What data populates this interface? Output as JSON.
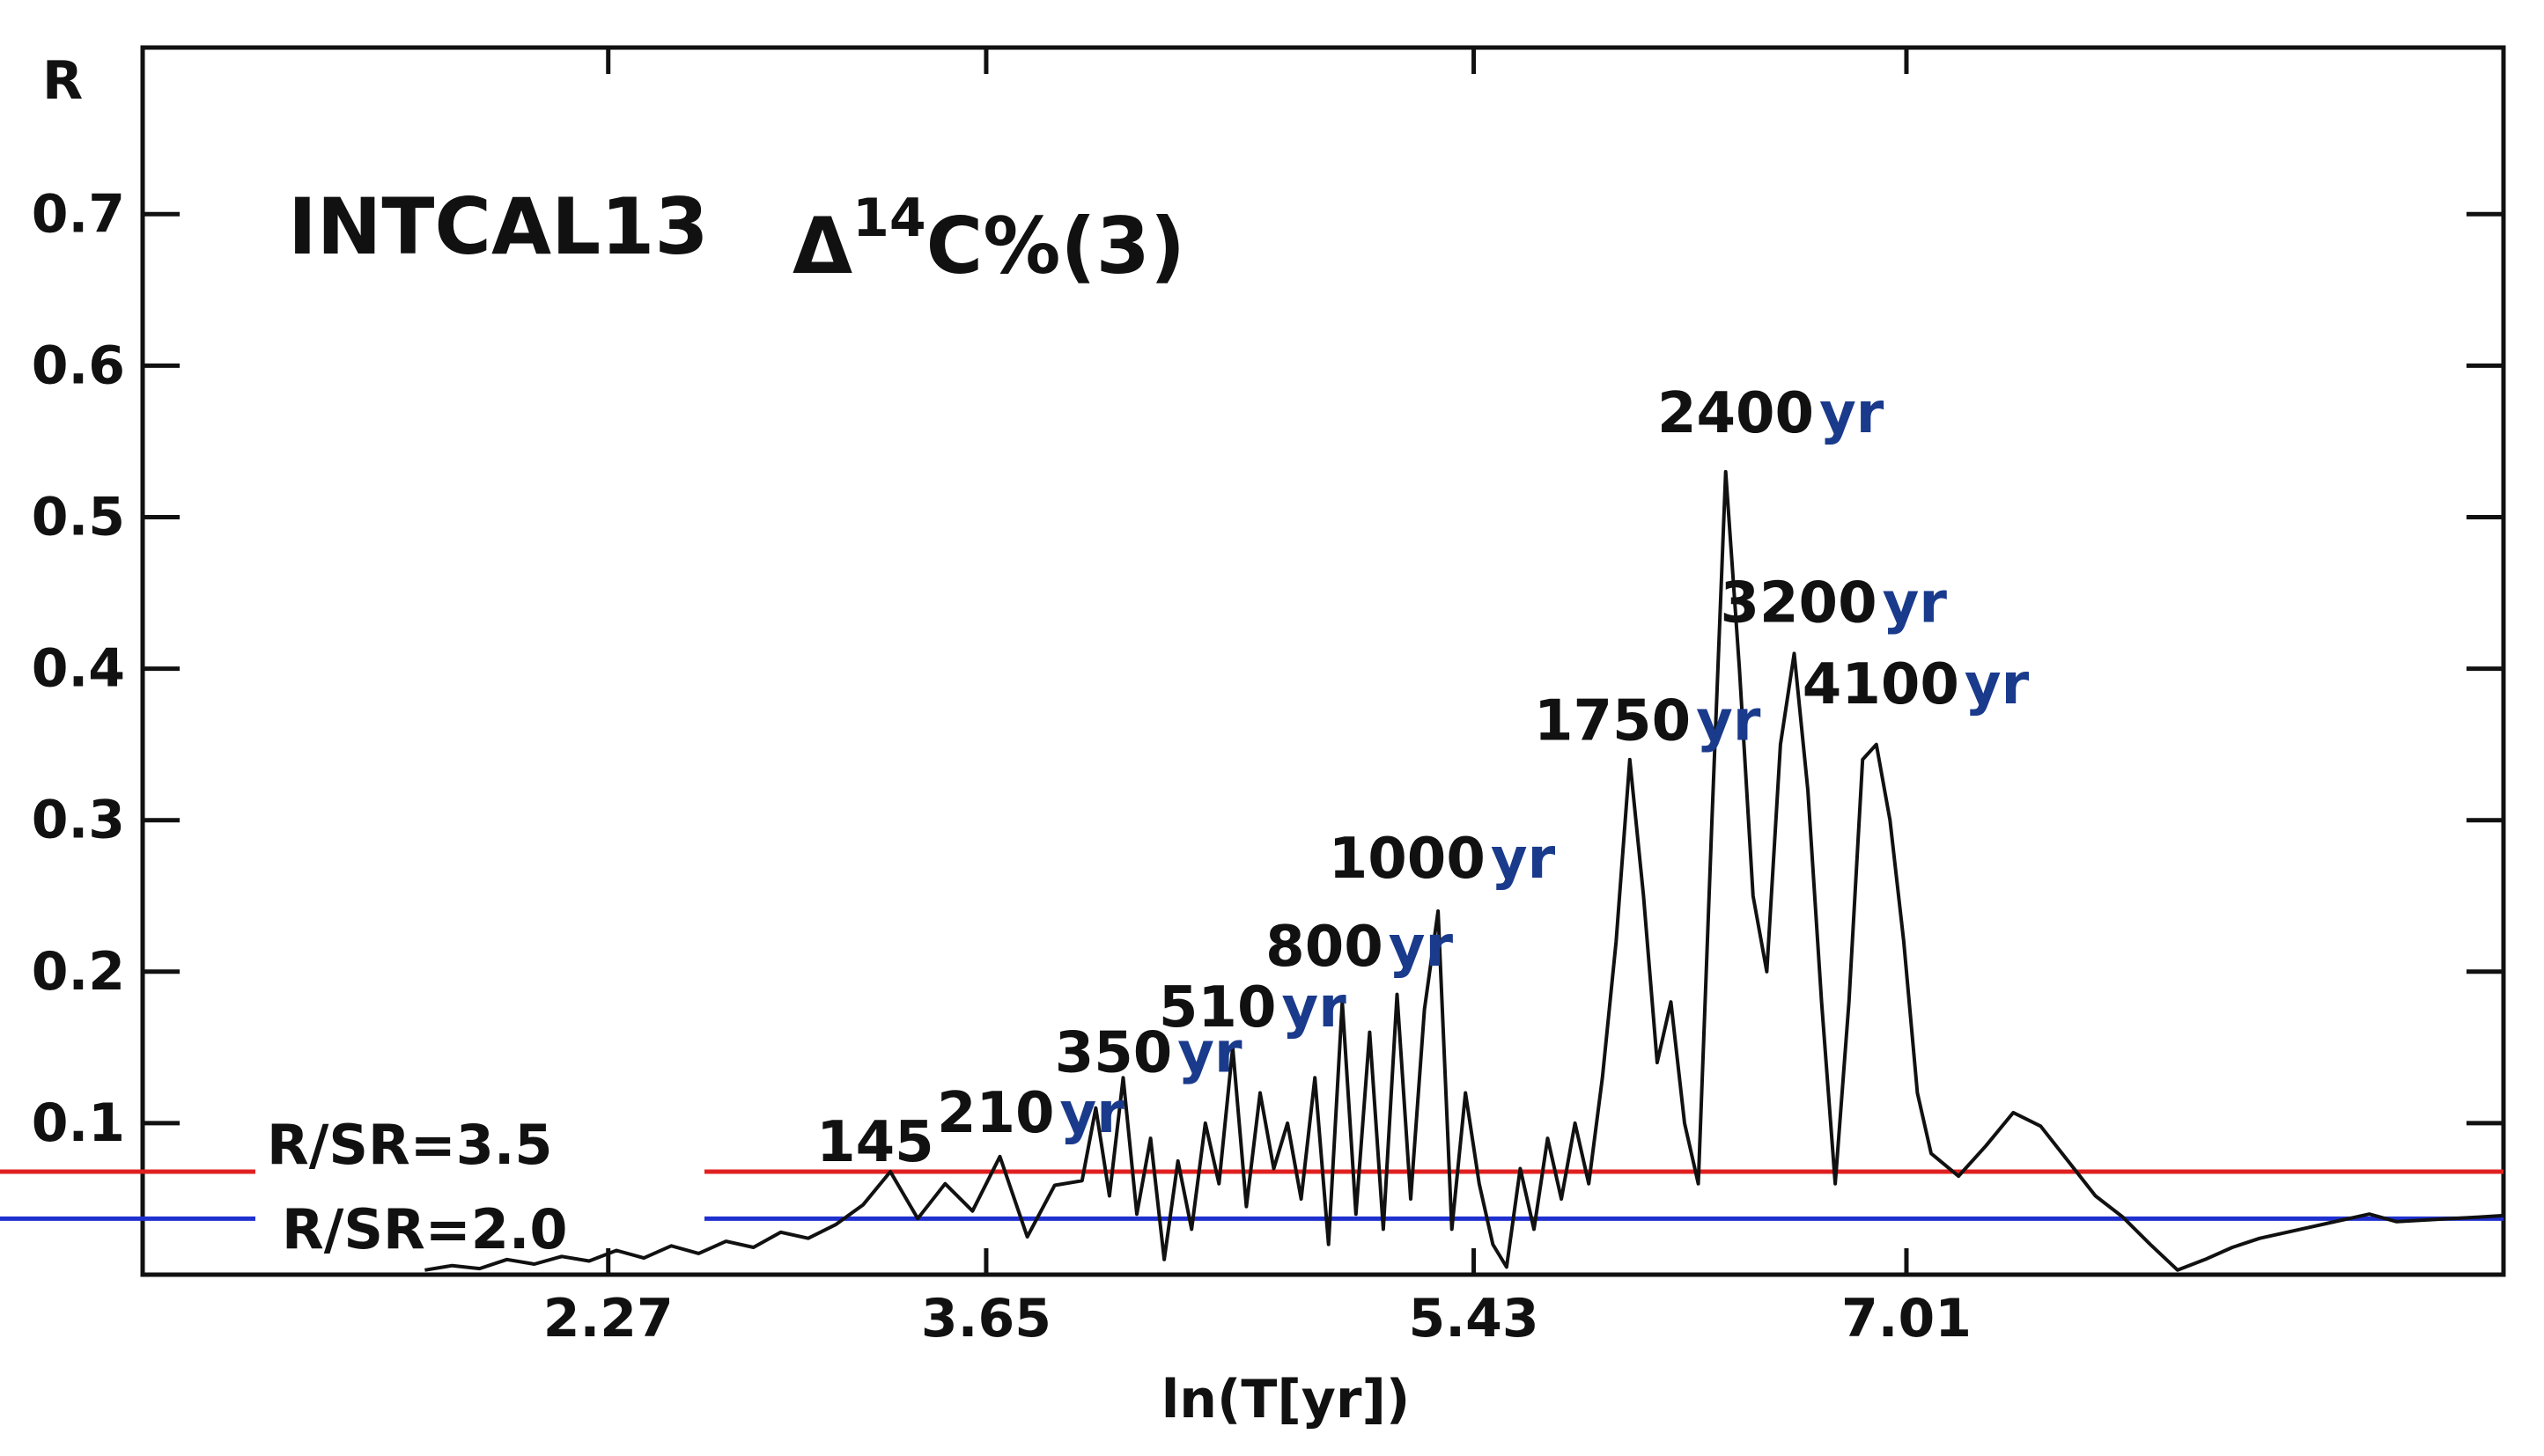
{
  "chart_data": {
    "type": "line",
    "title": "INTCAL13",
    "title_suffix": "Δ",
    "title_sup": "14",
    "title_tail": "C%(3)",
    "xlabel": "ln(T[yr])",
    "ylabel": "R",
    "xlim": [
      0.57,
      9.19
    ],
    "ylim": [
      0.0,
      0.81
    ],
    "xticks": [
      "2.27",
      "3.65",
      "5.43",
      "7.01"
    ],
    "xtick_values": [
      2.27,
      3.65,
      5.43,
      7.01
    ],
    "yticks": [
      "0.1",
      "0.2",
      "0.3",
      "0.4",
      "0.5",
      "0.6",
      "0.7"
    ],
    "ytick_values": [
      0.1,
      0.2,
      0.3,
      0.4,
      0.5,
      0.6,
      0.7
    ],
    "grid": false,
    "series": [
      {
        "color": "#111111",
        "x": [
          1.6,
          1.7,
          1.8,
          1.9,
          2.0,
          2.1,
          2.2,
          2.3,
          2.4,
          2.5,
          2.6,
          2.7,
          2.8,
          2.9,
          3.0,
          3.1,
          3.2,
          3.3,
          3.4,
          3.5,
          3.6,
          3.7,
          3.8,
          3.9,
          4.0,
          4.05,
          4.1,
          4.15,
          4.2,
          4.25,
          4.3,
          4.35,
          4.4,
          4.45,
          4.5,
          4.55,
          4.6,
          4.65,
          4.7,
          4.75,
          4.8,
          4.85,
          4.9,
          4.95,
          5.0,
          5.05,
          5.1,
          5.15,
          5.2,
          5.25,
          5.3,
          5.35,
          5.4,
          5.45,
          5.5,
          5.55,
          5.6,
          5.65,
          5.7,
          5.75,
          5.8,
          5.85,
          5.9,
          5.95,
          6.0,
          6.05,
          6.1,
          6.15,
          6.2,
          6.25,
          6.3,
          6.35,
          6.4,
          6.45,
          6.5,
          6.55,
          6.6,
          6.65,
          6.7,
          6.75,
          6.8,
          6.85,
          6.9,
          6.95,
          7.0,
          7.05,
          7.1,
          7.2,
          7.3,
          7.4,
          7.5,
          7.6,
          7.7,
          7.8,
          7.9,
          8.0,
          8.1,
          8.2,
          8.3,
          8.4,
          8.5,
          8.6,
          8.7,
          8.8,
          8.9,
          9.0,
          9.1,
          9.19
        ],
        "y": [
          0.003,
          0.006,
          0.004,
          0.01,
          0.007,
          0.012,
          0.009,
          0.016,
          0.011,
          0.019,
          0.014,
          0.022,
          0.018,
          0.028,
          0.024,
          0.033,
          0.046,
          0.068,
          0.037,
          0.06,
          0.042,
          0.078,
          0.025,
          0.059,
          0.062,
          0.11,
          0.052,
          0.13,
          0.04,
          0.09,
          0.01,
          0.075,
          0.03,
          0.1,
          0.06,
          0.15,
          0.045,
          0.12,
          0.07,
          0.1,
          0.05,
          0.13,
          0.02,
          0.18,
          0.04,
          0.16,
          0.03,
          0.185,
          0.05,
          0.175,
          0.24,
          0.03,
          0.12,
          0.06,
          0.02,
          0.005,
          0.07,
          0.03,
          0.09,
          0.05,
          0.1,
          0.06,
          0.13,
          0.22,
          0.34,
          0.25,
          0.14,
          0.18,
          0.1,
          0.06,
          0.3,
          0.53,
          0.4,
          0.25,
          0.2,
          0.35,
          0.41,
          0.32,
          0.18,
          0.06,
          0.18,
          0.34,
          0.35,
          0.3,
          0.22,
          0.12,
          0.08,
          0.065,
          0.085,
          0.107,
          0.098,
          0.075,
          0.052,
          0.038,
          0.02,
          0.003,
          0.01,
          0.018,
          0.024,
          0.028,
          0.032,
          0.036,
          0.04,
          0.035,
          0.036,
          0.037,
          0.038,
          0.039
        ]
      }
    ],
    "thresholds": [
      {
        "label": "R/SR=3.5",
        "value": 0.068,
        "color": "#e02020"
      },
      {
        "label": "R/SR=2.0",
        "value": 0.037,
        "color": "#2030d0"
      }
    ],
    "annotations": [
      {
        "num": "145",
        "unit": "",
        "x": 3.03,
        "y": 0.075
      },
      {
        "num": "210",
        "unit": "yr",
        "x": 3.47,
        "y": 0.094
      },
      {
        "num": "350",
        "unit": "yr",
        "x": 3.9,
        "y": 0.134
      },
      {
        "num": "510",
        "unit": "yr",
        "x": 4.28,
        "y": 0.164
      },
      {
        "num": "800",
        "unit": "yr",
        "x": 4.67,
        "y": 0.204
      },
      {
        "num": "1000",
        "unit": "yr",
        "x": 4.9,
        "y": 0.262
      },
      {
        "num": "1750",
        "unit": "yr",
        "x": 5.65,
        "y": 0.353
      },
      {
        "num": "2400",
        "unit": "yr",
        "x": 6.1,
        "y": 0.556
      },
      {
        "num": "3200",
        "unit": "yr",
        "x": 6.33,
        "y": 0.431
      },
      {
        "num": "4100",
        "unit": "yr",
        "x": 6.63,
        "y": 0.377
      }
    ]
  }
}
